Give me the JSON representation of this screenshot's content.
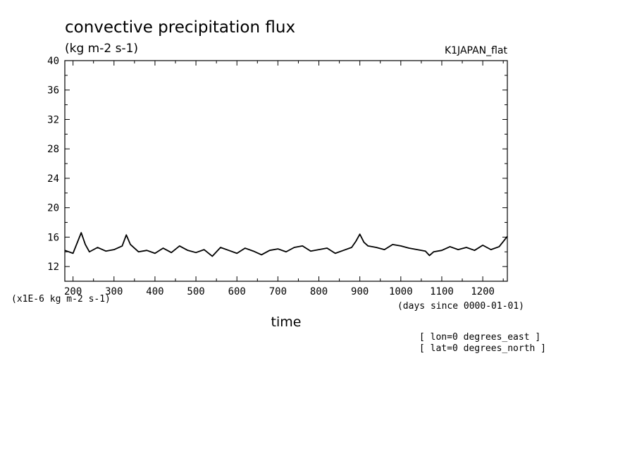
{
  "chart_data": {
    "type": "line",
    "title": "convective precipitation flux",
    "units": "(kg m-2 s-1)",
    "dataset": "K1JAPAN_flat",
    "xlabel": "time",
    "x_units": "(days since 0000-01-01)",
    "y_scale_note": "(x1E-6 kg m-2 s-1)",
    "location_notes": [
      "[ lon=0 degrees_east ]",
      "[ lat=0 degrees_north ]"
    ],
    "xlim": [
      180,
      1260
    ],
    "ylim": [
      10,
      40
    ],
    "x_ticks": [
      200,
      300,
      400,
      500,
      600,
      700,
      800,
      900,
      1000,
      1100,
      1200
    ],
    "y_ticks": [
      12,
      16,
      20,
      24,
      28,
      32,
      36,
      40
    ],
    "series": [
      {
        "x": [
          180,
          200,
          210,
          220,
          230,
          240,
          260,
          280,
          300,
          320,
          330,
          340,
          360,
          380,
          400,
          420,
          440,
          460,
          480,
          500,
          520,
          540,
          560,
          580,
          600,
          620,
          640,
          660,
          680,
          700,
          720,
          740,
          760,
          780,
          800,
          820,
          840,
          860,
          880,
          890,
          900,
          910,
          920,
          940,
          960,
          980,
          1000,
          1020,
          1040,
          1060,
          1070,
          1080,
          1100,
          1120,
          1140,
          1160,
          1180,
          1200,
          1220,
          1240,
          1250,
          1260
        ],
        "values": [
          14.2,
          13.8,
          15.2,
          16.6,
          15.0,
          14.0,
          14.6,
          14.1,
          14.3,
          14.8,
          16.3,
          15.0,
          14.0,
          14.2,
          13.8,
          14.5,
          13.9,
          14.8,
          14.2,
          13.9,
          14.3,
          13.4,
          14.6,
          14.2,
          13.8,
          14.5,
          14.1,
          13.6,
          14.2,
          14.4,
          14.0,
          14.6,
          14.8,
          14.1,
          14.3,
          14.5,
          13.8,
          14.2,
          14.6,
          15.4,
          16.4,
          15.3,
          14.8,
          14.6,
          14.3,
          15.0,
          14.8,
          14.5,
          14.3,
          14.1,
          13.5,
          14.0,
          14.2,
          14.7,
          14.3,
          14.6,
          14.2,
          14.9,
          14.3,
          14.7,
          15.4,
          16.1
        ]
      }
    ],
    "grid": false,
    "line_color": "#000000"
  }
}
